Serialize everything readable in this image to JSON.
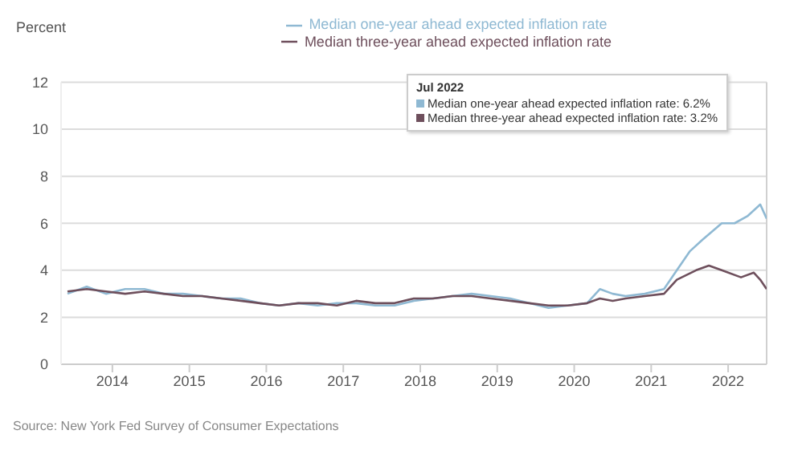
{
  "chart_data": {
    "type": "line",
    "ylabel": "Percent",
    "xlim": [
      "2013-05",
      "2022-07"
    ],
    "xticks": [
      "2014",
      "2015",
      "2016",
      "2017",
      "2018",
      "2019",
      "2020",
      "2021",
      "2022"
    ],
    "ylim": [
      0,
      12
    ],
    "yticks": [
      0,
      2,
      4,
      6,
      8,
      10,
      12
    ],
    "grid": "y",
    "legend": "top",
    "marker": "none",
    "line_style": "solid",
    "ref_lines": [
      {
        "axis": "x",
        "value": "2022-07",
        "color": "#d0d0d0"
      }
    ],
    "annotations": [
      "Jul 2022",
      "Median one-year ahead expected inflation rate: 6.2%",
      "Median three-year ahead expected inflation rate: 3.2%",
      "Source: New York Fed Survey of Consumer Expectations"
    ],
    "series": [
      {
        "name": "Median one-year ahead expected inflation rate",
        "color": "#8fb9d3",
        "x": [
          "2013-06",
          "2013-09",
          "2013-12",
          "2014-03",
          "2014-06",
          "2014-09",
          "2014-12",
          "2015-03",
          "2015-06",
          "2015-09",
          "2015-12",
          "2016-03",
          "2016-06",
          "2016-09",
          "2016-12",
          "2017-03",
          "2017-06",
          "2017-09",
          "2017-12",
          "2018-03",
          "2018-06",
          "2018-09",
          "2018-12",
          "2019-03",
          "2019-06",
          "2019-09",
          "2019-12",
          "2020-03",
          "2020-05",
          "2020-07",
          "2020-09",
          "2020-12",
          "2021-03",
          "2021-05",
          "2021-07",
          "2021-09",
          "2021-12",
          "2022-02",
          "2022-04",
          "2022-06",
          "2022-07"
        ],
        "values": [
          3.0,
          3.3,
          3.0,
          3.2,
          3.2,
          3.0,
          3.0,
          2.9,
          2.8,
          2.8,
          2.6,
          2.5,
          2.6,
          2.5,
          2.6,
          2.6,
          2.5,
          2.5,
          2.7,
          2.8,
          2.9,
          3.0,
          2.9,
          2.8,
          2.6,
          2.4,
          2.5,
          2.6,
          3.2,
          3.0,
          2.9,
          3.0,
          3.2,
          4.0,
          4.8,
          5.3,
          6.0,
          6.0,
          6.3,
          6.8,
          6.2
        ]
      },
      {
        "name": "Median three-year ahead expected inflation rate",
        "color": "#6e4f5c",
        "x": [
          "2013-06",
          "2013-09",
          "2013-12",
          "2014-03",
          "2014-06",
          "2014-09",
          "2014-12",
          "2015-03",
          "2015-06",
          "2015-09",
          "2015-12",
          "2016-03",
          "2016-06",
          "2016-09",
          "2016-12",
          "2017-03",
          "2017-06",
          "2017-09",
          "2017-12",
          "2018-03",
          "2018-06",
          "2018-09",
          "2018-12",
          "2019-03",
          "2019-06",
          "2019-09",
          "2019-12",
          "2020-03",
          "2020-05",
          "2020-07",
          "2020-09",
          "2020-12",
          "2021-03",
          "2021-05",
          "2021-08",
          "2021-10",
          "2021-12",
          "2022-03",
          "2022-05",
          "2022-06",
          "2022-07"
        ],
        "values": [
          3.1,
          3.2,
          3.1,
          3.0,
          3.1,
          3.0,
          2.9,
          2.9,
          2.8,
          2.7,
          2.6,
          2.5,
          2.6,
          2.6,
          2.5,
          2.7,
          2.6,
          2.6,
          2.8,
          2.8,
          2.9,
          2.9,
          2.8,
          2.7,
          2.6,
          2.5,
          2.5,
          2.6,
          2.8,
          2.7,
          2.8,
          2.9,
          3.0,
          3.6,
          4.0,
          4.2,
          4.0,
          3.7,
          3.9,
          3.6,
          3.2
        ]
      }
    ]
  }
}
